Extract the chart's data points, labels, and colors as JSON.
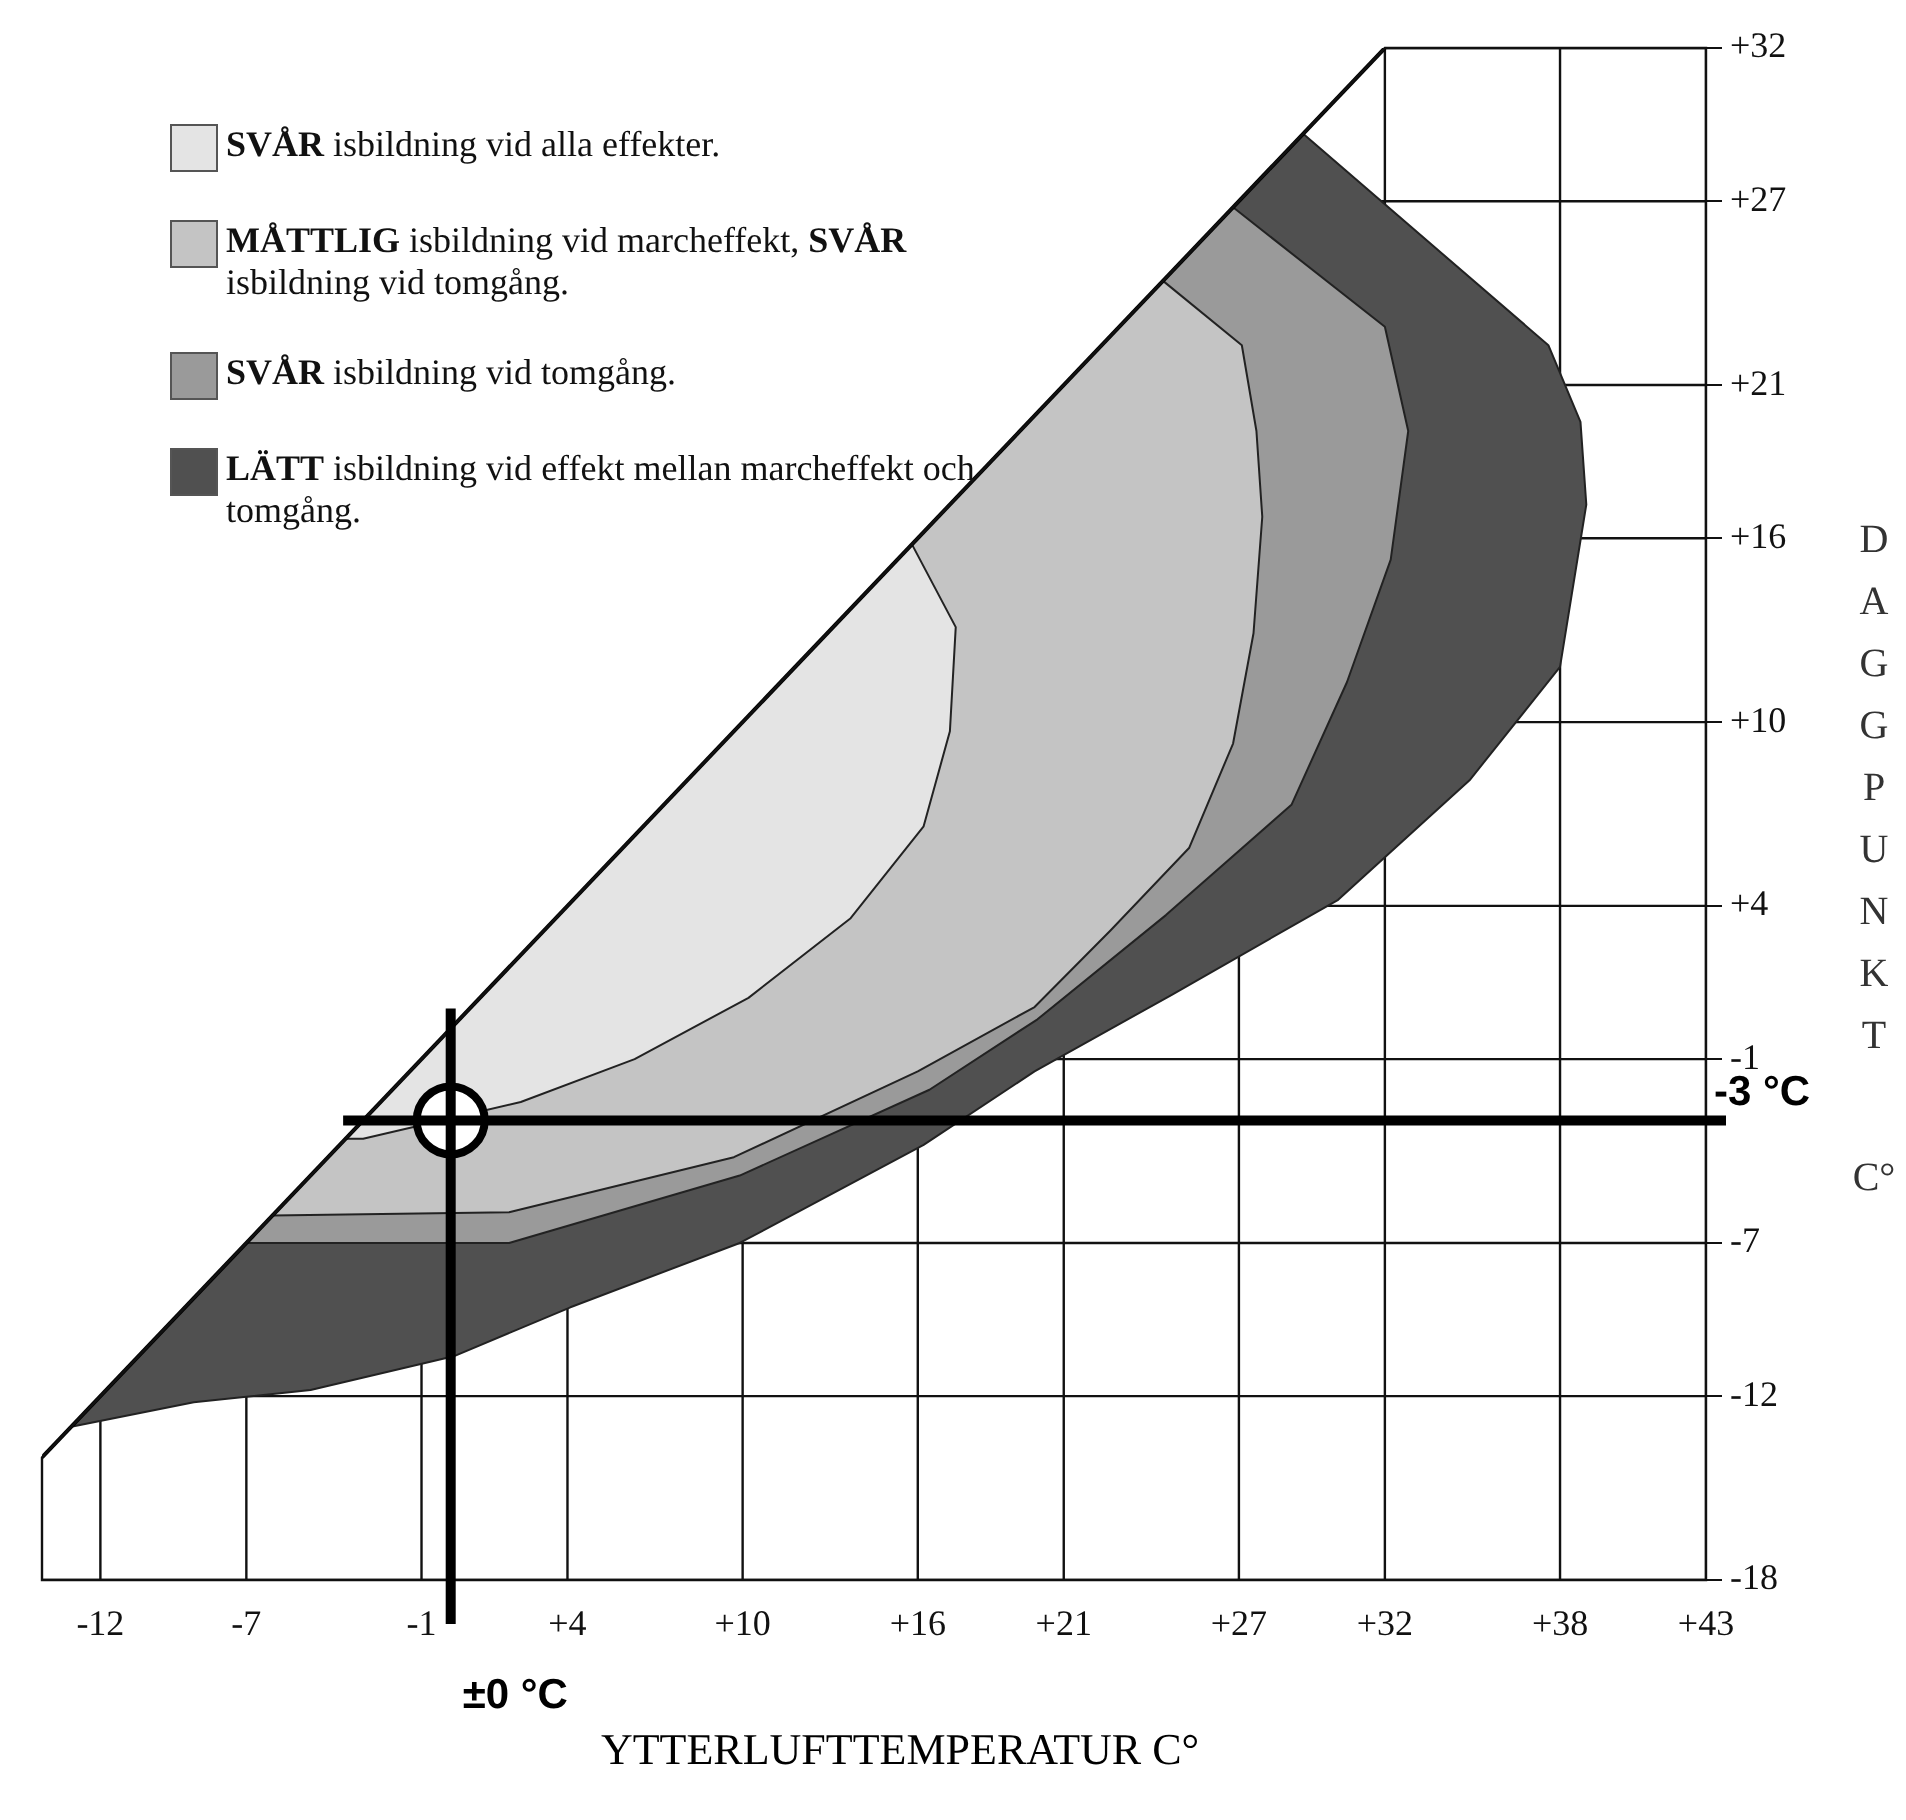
{
  "chart_data": {
    "type": "area",
    "xlabel": "YTTERLUFTTEMPERATUR C°",
    "ylabel": "DAGGPUNKT C°",
    "xlim": [
      -14,
      43
    ],
    "ylim": [
      -18,
      32
    ],
    "xticks": [
      -12,
      -7,
      -1,
      {
        "value": 4,
        "label": "+4"
      },
      {
        "value": 10,
        "label": "+10"
      },
      {
        "value": 16,
        "label": "+16"
      },
      {
        "value": 21,
        "label": "+21"
      },
      {
        "value": 27,
        "label": "+27"
      },
      {
        "value": 32,
        "label": "+32"
      },
      {
        "value": 38,
        "label": "+38"
      },
      {
        "value": 43,
        "label": "+43"
      }
    ],
    "yticks": [
      -18,
      -12,
      -7,
      -1,
      {
        "value": 4,
        "label": "+4"
      },
      {
        "value": 10,
        "label": "+10"
      },
      {
        "value": 16,
        "label": "+16"
      },
      {
        "value": 21,
        "label": "+21"
      },
      {
        "value": 27,
        "label": "+27"
      },
      {
        "value": 32,
        "label": "+32"
      }
    ],
    "grid": true,
    "legend": "top left",
    "ref_lines": [
      {
        "axis": "y",
        "value": -3,
        "label": "-3 °C"
      },
      {
        "axis": "x",
        "value": 0,
        "label": "±0 °C"
      }
    ],
    "series": [
      {
        "name": "SVÅR isbildning vid alla effekter.",
        "color": "#e4e4e4",
        "x": [
          -3.6,
          -3,
          2.4,
          6.3,
          10.2,
          13.7,
          16.2,
          17.1,
          17.3,
          15.8
        ],
        "values": [
          -3.6,
          -3.6,
          -2.4,
          -1,
          1,
          3.6,
          6.6,
          9.7,
          13.1,
          15.8
        ]
      },
      {
        "name": "MÅTTLIG isbildning vid marcheffekt, SVÅR isbildning vid tomgång.",
        "color": "#c4c4c4",
        "x": [
          -6.1,
          2,
          9.7,
          16,
          20,
          22.6,
          25.3,
          26.8,
          27.5,
          27.8,
          27.6,
          27.1,
          24.4
        ],
        "values": [
          -6.1,
          -6,
          -4.2,
          -1.4,
          0.7,
          3.2,
          5.9,
          9.3,
          12.9,
          16.7,
          19.5,
          22.3,
          24.4
        ]
      },
      {
        "name": "SVÅR isbildning vid tomgång.",
        "color": "#9a9a9a",
        "x": [
          -7,
          2,
          9.9,
          16.4,
          20.1,
          24.5,
          28.8,
          30.7,
          32.2,
          32.8,
          32,
          26.8
        ],
        "values": [
          -7,
          -7,
          -4.8,
          -2,
          0.3,
          3.7,
          7.3,
          11.3,
          15.3,
          19.5,
          22.9,
          26.8
        ]
      },
      {
        "name": "LÄTT isbildning vid effekt mellan marcheffekt och tomgång.",
        "color": "#505050",
        "x": [
          -13,
          -8.8,
          -4.8,
          0.1,
          4.1,
          9.9,
          16.2,
          20,
          24.7,
          30.4,
          34.9,
          38,
          38.9,
          38.7,
          37.6,
          29.2
        ],
        "values": [
          -13,
          -12.2,
          -11.8,
          -10.7,
          -9.1,
          -7,
          -3.8,
          -1.4,
          1.1,
          4.2,
          8.1,
          11.8,
          17.1,
          19.8,
          22.3,
          29.2
        ]
      },
      {
        "type": "line",
        "color": "#000000",
        "x": [
          -14,
          32
        ],
        "values": [
          -14,
          32
        ]
      },
      {
        "type": "scatter",
        "color": "#ffffff",
        "x": [
          0
        ],
        "values": [
          -3
        ]
      }
    ]
  }
}
